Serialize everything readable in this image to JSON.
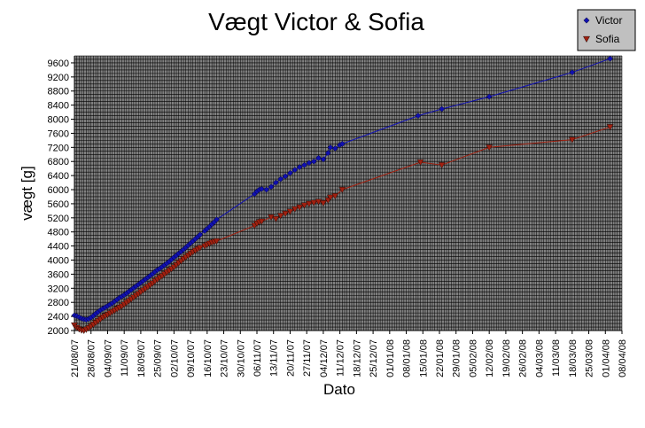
{
  "chart_data": {
    "type": "line",
    "title": "Vægt Victor & Sofia",
    "xlabel": "Dato",
    "ylabel": "vægt [g]",
    "ylim": [
      2000,
      9800
    ],
    "y_ticks": [
      2000,
      2400,
      2800,
      3200,
      3600,
      4000,
      4400,
      4800,
      5200,
      5600,
      6000,
      6400,
      6800,
      7200,
      7600,
      8000,
      8400,
      8800,
      9200,
      9600
    ],
    "xlim": [
      "2007-08-21",
      "2008-04-08"
    ],
    "x_ticks": [
      "21/08/07",
      "28/08/07",
      "04/09/07",
      "11/09/07",
      "18/09/07",
      "25/09/07",
      "02/10/07",
      "09/10/07",
      "16/10/07",
      "23/10/07",
      "30/10/07",
      "06/11/07",
      "13/11/07",
      "20/11/07",
      "27/11/07",
      "04/12/07",
      "11/12/07",
      "18/12/07",
      "25/12/07",
      "01/01/08",
      "08/01/08",
      "15/01/08",
      "22/01/08",
      "29/01/08",
      "05/02/08",
      "12/02/08",
      "19/02/08",
      "26/02/08",
      "04/03/08",
      "11/03/08",
      "18/03/08",
      "25/03/08",
      "01/04/08",
      "08/04/08"
    ],
    "grid": true,
    "legend_position": "top-right",
    "plot_background": "#808080",
    "series": [
      {
        "name": "Victor",
        "color": "#1010b0",
        "marker": "diamond",
        "points": [
          [
            "2007-08-21",
            2430
          ],
          [
            "2007-08-22",
            2410
          ],
          [
            "2007-08-23",
            2380
          ],
          [
            "2007-08-24",
            2340
          ],
          [
            "2007-08-25",
            2320
          ],
          [
            "2007-08-26",
            2310
          ],
          [
            "2007-08-27",
            2330
          ],
          [
            "2007-08-28",
            2370
          ],
          [
            "2007-08-29",
            2420
          ],
          [
            "2007-08-30",
            2480
          ],
          [
            "2007-08-31",
            2530
          ],
          [
            "2007-09-01",
            2580
          ],
          [
            "2007-09-02",
            2620
          ],
          [
            "2007-09-03",
            2660
          ],
          [
            "2007-09-04",
            2700
          ],
          [
            "2007-09-05",
            2740
          ],
          [
            "2007-09-06",
            2780
          ],
          [
            "2007-09-07",
            2830
          ],
          [
            "2007-09-08",
            2880
          ],
          [
            "2007-09-09",
            2930
          ],
          [
            "2007-09-10",
            2970
          ],
          [
            "2007-09-11",
            3010
          ],
          [
            "2007-09-12",
            3060
          ],
          [
            "2007-09-13",
            3110
          ],
          [
            "2007-09-14",
            3160
          ],
          [
            "2007-09-15",
            3210
          ],
          [
            "2007-09-16",
            3260
          ],
          [
            "2007-09-17",
            3310
          ],
          [
            "2007-09-18",
            3360
          ],
          [
            "2007-09-19",
            3410
          ],
          [
            "2007-09-20",
            3460
          ],
          [
            "2007-09-21",
            3510
          ],
          [
            "2007-09-22",
            3560
          ],
          [
            "2007-09-23",
            3610
          ],
          [
            "2007-09-24",
            3670
          ],
          [
            "2007-09-25",
            3720
          ],
          [
            "2007-09-26",
            3760
          ],
          [
            "2007-09-27",
            3810
          ],
          [
            "2007-09-28",
            3860
          ],
          [
            "2007-09-29",
            3910
          ],
          [
            "2007-09-30",
            3960
          ],
          [
            "2007-10-01",
            4020
          ],
          [
            "2007-10-02",
            4080
          ],
          [
            "2007-10-03",
            4130
          ],
          [
            "2007-10-04",
            4190
          ],
          [
            "2007-10-05",
            4240
          ],
          [
            "2007-10-06",
            4300
          ],
          [
            "2007-10-07",
            4360
          ],
          [
            "2007-10-08",
            4420
          ],
          [
            "2007-10-09",
            4480
          ],
          [
            "2007-10-10",
            4540
          ],
          [
            "2007-10-11",
            4600
          ],
          [
            "2007-10-12",
            4660
          ],
          [
            "2007-10-13",
            4720
          ],
          [
            "2007-10-15",
            4830
          ],
          [
            "2007-10-16",
            4890
          ],
          [
            "2007-10-17",
            4950
          ],
          [
            "2007-10-18",
            5020
          ],
          [
            "2007-10-19",
            5080
          ],
          [
            "2007-10-20",
            5150
          ],
          [
            "2007-11-05",
            5880
          ],
          [
            "2007-11-06",
            5950
          ],
          [
            "2007-11-07",
            6000
          ],
          [
            "2007-11-08",
            6020
          ],
          [
            "2007-11-10",
            6000
          ],
          [
            "2007-11-12",
            6080
          ],
          [
            "2007-11-14",
            6200
          ],
          [
            "2007-11-16",
            6300
          ],
          [
            "2007-11-18",
            6380
          ],
          [
            "2007-11-20",
            6470
          ],
          [
            "2007-11-22",
            6560
          ],
          [
            "2007-11-24",
            6640
          ],
          [
            "2007-11-26",
            6700
          ],
          [
            "2007-11-28",
            6760
          ],
          [
            "2007-11-30",
            6800
          ],
          [
            "2007-12-02",
            6900
          ],
          [
            "2007-12-04",
            6860
          ],
          [
            "2007-12-06",
            7040
          ],
          [
            "2007-12-07",
            7200
          ],
          [
            "2007-12-09",
            7170
          ],
          [
            "2007-12-11",
            7270
          ],
          [
            "2007-12-12",
            7300
          ],
          [
            "2008-01-13",
            8100
          ],
          [
            "2008-01-23",
            8290
          ],
          [
            "2008-02-12",
            8640
          ],
          [
            "2008-03-18",
            9330
          ],
          [
            "2008-04-03",
            9720
          ]
        ]
      },
      {
        "name": "Sofia",
        "color": "#a02010",
        "marker": "triangle-down",
        "points": [
          [
            "2007-08-21",
            2150
          ],
          [
            "2007-08-22",
            2080
          ],
          [
            "2007-08-23",
            2040
          ],
          [
            "2007-08-24",
            2010
          ],
          [
            "2007-08-25",
            2000
          ],
          [
            "2007-08-26",
            2030
          ],
          [
            "2007-08-27",
            2070
          ],
          [
            "2007-08-28",
            2120
          ],
          [
            "2007-08-29",
            2170
          ],
          [
            "2007-08-30",
            2220
          ],
          [
            "2007-08-31",
            2270
          ],
          [
            "2007-09-01",
            2320
          ],
          [
            "2007-09-02",
            2370
          ],
          [
            "2007-09-03",
            2410
          ],
          [
            "2007-09-04",
            2450
          ],
          [
            "2007-09-05",
            2490
          ],
          [
            "2007-09-06",
            2530
          ],
          [
            "2007-09-07",
            2570
          ],
          [
            "2007-09-08",
            2610
          ],
          [
            "2007-09-09",
            2650
          ],
          [
            "2007-09-10",
            2690
          ],
          [
            "2007-09-11",
            2740
          ],
          [
            "2007-09-12",
            2790
          ],
          [
            "2007-09-13",
            2840
          ],
          [
            "2007-09-14",
            2890
          ],
          [
            "2007-09-15",
            2940
          ],
          [
            "2007-09-16",
            2990
          ],
          [
            "2007-09-17",
            3040
          ],
          [
            "2007-09-18",
            3090
          ],
          [
            "2007-09-19",
            3140
          ],
          [
            "2007-09-20",
            3190
          ],
          [
            "2007-09-21",
            3240
          ],
          [
            "2007-09-22",
            3290
          ],
          [
            "2007-09-23",
            3340
          ],
          [
            "2007-09-24",
            3400
          ],
          [
            "2007-09-25",
            3450
          ],
          [
            "2007-09-26",
            3500
          ],
          [
            "2007-09-27",
            3550
          ],
          [
            "2007-09-28",
            3600
          ],
          [
            "2007-09-29",
            3650
          ],
          [
            "2007-09-30",
            3700
          ],
          [
            "2007-10-01",
            3750
          ],
          [
            "2007-10-02",
            3800
          ],
          [
            "2007-10-03",
            3860
          ],
          [
            "2007-10-04",
            3920
          ],
          [
            "2007-10-05",
            3970
          ],
          [
            "2007-10-06",
            4030
          ],
          [
            "2007-10-07",
            4080
          ],
          [
            "2007-10-08",
            4130
          ],
          [
            "2007-10-09",
            4180
          ],
          [
            "2007-10-10",
            4230
          ],
          [
            "2007-10-11",
            4270
          ],
          [
            "2007-10-12",
            4310
          ],
          [
            "2007-10-13",
            4350
          ],
          [
            "2007-10-15",
            4400
          ],
          [
            "2007-10-16",
            4440
          ],
          [
            "2007-10-17",
            4470
          ],
          [
            "2007-10-18",
            4500
          ],
          [
            "2007-10-19",
            4520
          ],
          [
            "2007-10-20",
            4540
          ],
          [
            "2007-11-05",
            4980
          ],
          [
            "2007-11-06",
            5040
          ],
          [
            "2007-11-07",
            5080
          ],
          [
            "2007-11-08",
            5100
          ],
          [
            "2007-11-12",
            5220
          ],
          [
            "2007-11-14",
            5170
          ],
          [
            "2007-11-16",
            5260
          ],
          [
            "2007-11-18",
            5320
          ],
          [
            "2007-11-20",
            5380
          ],
          [
            "2007-11-22",
            5450
          ],
          [
            "2007-11-24",
            5500
          ],
          [
            "2007-11-26",
            5560
          ],
          [
            "2007-11-28",
            5600
          ],
          [
            "2007-11-30",
            5630
          ],
          [
            "2007-12-02",
            5660
          ],
          [
            "2007-12-04",
            5620
          ],
          [
            "2007-12-06",
            5700
          ],
          [
            "2007-12-07",
            5780
          ],
          [
            "2007-12-09",
            5820
          ],
          [
            "2007-12-12",
            6000
          ],
          [
            "2008-01-14",
            6780
          ],
          [
            "2008-01-23",
            6700
          ],
          [
            "2008-02-12",
            7200
          ],
          [
            "2008-03-18",
            7420
          ],
          [
            "2008-04-03",
            7780
          ]
        ]
      }
    ]
  }
}
